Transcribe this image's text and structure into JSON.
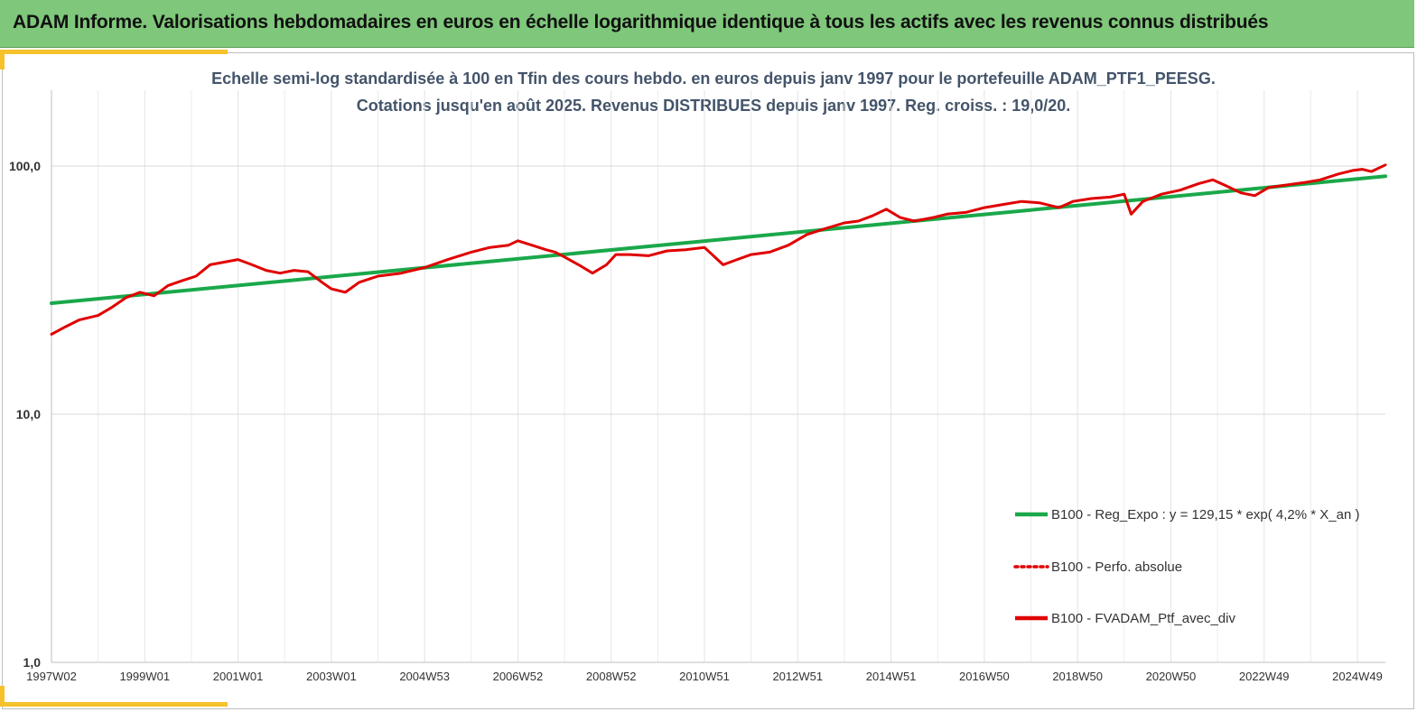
{
  "header": {
    "title": "ADAM Informe. Valorisations hebdomadaires en euros en échelle logarithmique identique à tous les actifs avec les revenus connus distribués"
  },
  "chart_data": {
    "type": "line",
    "title_line1": "Echelle semi-log standardisée  à 100 en Tfin des cours hebdo.  en euros depuis janv 1997 pour le portefeuille ADAM_PTF1_PEESG.",
    "title_line2": "Cotations  jusqu'en août 2025. Revenus DISTRIBUES depuis janv 1997. Reg. croiss. : 19,0/20.",
    "y_scale": "log",
    "ylim": [
      1,
      200
    ],
    "yticks": [
      1,
      10,
      100
    ],
    "ytick_labels": [
      "1,0",
      "10,0",
      "100,0"
    ],
    "xlim": [
      1997.0,
      2025.6
    ],
    "xticks": [
      1997.0,
      1999.0,
      2001.0,
      2003.0,
      2005.0,
      2007.0,
      2009.0,
      2011.0,
      2013.0,
      2015.0,
      2017.0,
      2019.0,
      2021.0,
      2023.0,
      2025.0
    ],
    "xtick_labels": [
      "1997W02",
      "1999W01",
      "2001W01",
      "2003W01",
      "2004W53",
      "2006W52",
      "2008W52",
      "2010W51",
      "2012W51",
      "2014W51",
      "2016W50",
      "2018W50",
      "2020W50",
      "2022W49",
      "2024W49"
    ],
    "grid": "vertical",
    "legend_position": "bottom-right",
    "series": [
      {
        "name": "B100 - Reg_Expo : y = 129,15 * exp( 4,2% *  X_an )",
        "color": "#1aa84a",
        "style": "solid",
        "x": [
          1997.0,
          2025.6
        ],
        "values": [
          28.0,
          91.0
        ]
      },
      {
        "name": "B100 - Perfo. absolue",
        "color": "#e00000",
        "style": "dotted",
        "x": [],
        "values": []
      },
      {
        "name": "B100 - FVADAM_Ptf_avec_div",
        "color": "#e00000",
        "style": "solid",
        "x": [
          1997.0,
          1997.3,
          1997.6,
          1998.0,
          1998.3,
          1998.6,
          1998.9,
          1999.2,
          1999.5,
          1999.8,
          2000.1,
          2000.4,
          2000.7,
          2001.0,
          2001.3,
          2001.6,
          2001.9,
          2002.2,
          2002.5,
          2002.8,
          2003.0,
          2003.3,
          2003.6,
          2004.0,
          2004.5,
          2005.0,
          2005.5,
          2006.0,
          2006.4,
          2006.8,
          2007.0,
          2007.3,
          2007.6,
          2007.8,
          2008.0,
          2008.3,
          2008.6,
          2008.9,
          2009.1,
          2009.4,
          2009.8,
          2010.2,
          2010.6,
          2011.0,
          2011.4,
          2011.7,
          2012.0,
          2012.4,
          2012.8,
          2013.2,
          2013.6,
          2014.0,
          2014.3,
          2014.6,
          2014.9,
          2015.2,
          2015.5,
          2015.9,
          2016.2,
          2016.6,
          2017.0,
          2017.4,
          2017.8,
          2018.2,
          2018.6,
          2018.9,
          2019.3,
          2019.7,
          2020.0,
          2020.15,
          2020.4,
          2020.8,
          2021.2,
          2021.6,
          2021.9,
          2022.2,
          2022.5,
          2022.8,
          2023.1,
          2023.5,
          2023.9,
          2024.2,
          2024.6,
          2024.9,
          2025.1,
          2025.3,
          2025.6
        ],
        "values": [
          21,
          22.5,
          24,
          25,
          27,
          29.5,
          31,
          30,
          33,
          34.5,
          36,
          40,
          41,
          42,
          40,
          38,
          37,
          38,
          37.5,
          34,
          32,
          31,
          34,
          36,
          37,
          39,
          42,
          45,
          47,
          48,
          50,
          48,
          46,
          45,
          43,
          40,
          37,
          40,
          44,
          44,
          43.5,
          45.5,
          46,
          47,
          40,
          42,
          44,
          45,
          48,
          53,
          56,
          59,
          60,
          63,
          67,
          62,
          60,
          62,
          64,
          65,
          68,
          70,
          72,
          71,
          68,
          72,
          74,
          75,
          77,
          64,
          72,
          77,
          80,
          85,
          88,
          83,
          78,
          76,
          82,
          84,
          86,
          88,
          93,
          96,
          97,
          95,
          101
        ]
      }
    ]
  }
}
